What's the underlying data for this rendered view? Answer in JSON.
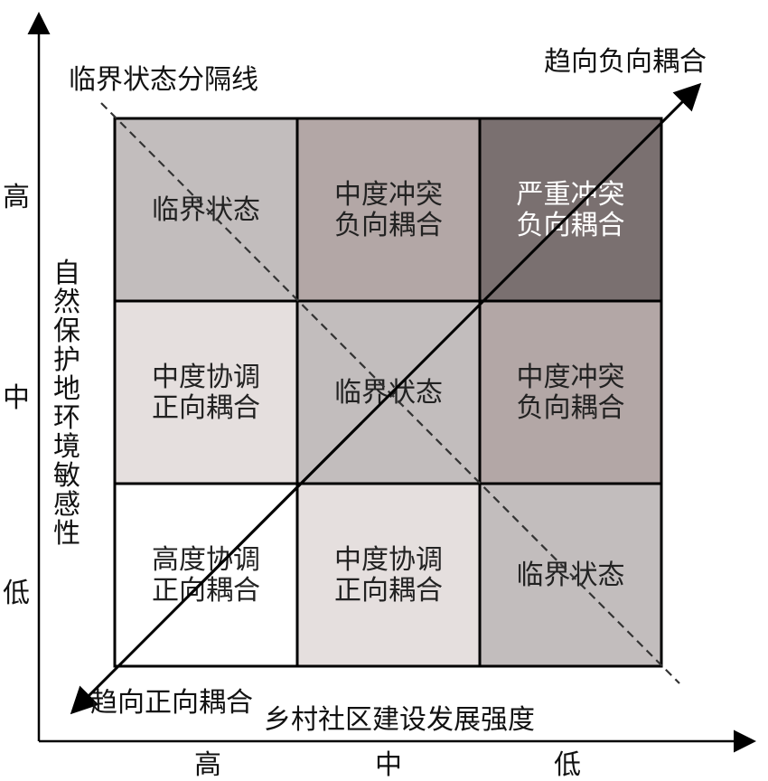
{
  "labels": {
    "separator_line": "临界状态分隔线",
    "negative_trend": "趋向负向耦合",
    "positive_trend": "趋向正向耦合",
    "x_axis": "乡村社区建设发展强度",
    "y_axis": "自然保护地环境敏感性"
  },
  "x_ticks": [
    "高",
    "中",
    "低"
  ],
  "y_ticks": [
    "高",
    "中",
    "低"
  ],
  "cells": [
    [
      {
        "lines": [
          "临界状态"
        ],
        "color": "#c2bdbd"
      },
      {
        "lines": [
          "中度冲突",
          "负向耦合"
        ],
        "color": "#b3a7a6"
      },
      {
        "lines": [
          "严重冲突",
          "负向耦合"
        ],
        "color": "#7a7070",
        "text_color": "#ffffff"
      }
    ],
    [
      {
        "lines": [
          "中度协调",
          "正向耦合"
        ],
        "color": "#e5dfde"
      },
      {
        "lines": [
          "临界状态"
        ],
        "color": "#c2bdbd"
      },
      {
        "lines": [
          "中度冲突",
          "负向耦合"
        ],
        "color": "#b3a7a6"
      }
    ],
    [
      {
        "lines": [
          "高度协调",
          "正向耦合"
        ],
        "color": "#ffffff"
      },
      {
        "lines": [
          "中度协调",
          "正向耦合"
        ],
        "color": "#e5dfde"
      },
      {
        "lines": [
          "临界状态"
        ],
        "color": "#c2bdbd"
      }
    ]
  ]
}
